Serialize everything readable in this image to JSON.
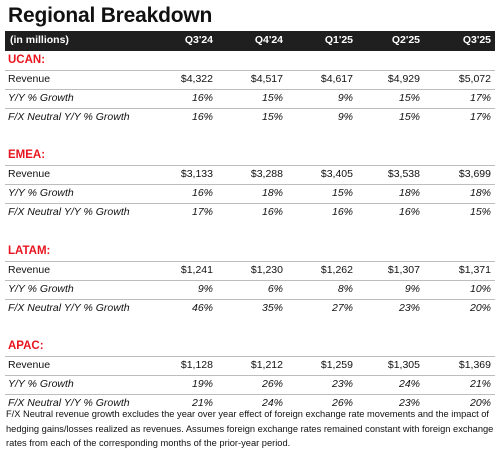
{
  "title": "Regional Breakdown",
  "header": {
    "label": "(in millions)",
    "columns": [
      "Q3'24",
      "Q4'24",
      "Q1'25",
      "Q2'25",
      "Q3'25"
    ]
  },
  "sections": [
    {
      "name": "UCAN:",
      "rows": [
        {
          "label": "Revenue",
          "values": [
            "$4,322",
            "$4,517",
            "$4,617",
            "$4,929",
            "$5,072"
          ]
        },
        {
          "label": "Y/Y % Growth",
          "values": [
            "16%",
            "15%",
            "9%",
            "15%",
            "17%"
          ]
        },
        {
          "label": "F/X Neutral Y/Y % Growth",
          "values": [
            "16%",
            "15%",
            "9%",
            "15%",
            "17%"
          ]
        }
      ]
    },
    {
      "name": "EMEA:",
      "rows": [
        {
          "label": "Revenue",
          "values": [
            "$3,133",
            "$3,288",
            "$3,405",
            "$3,538",
            "$3,699"
          ]
        },
        {
          "label": "Y/Y % Growth",
          "values": [
            "16%",
            "18%",
            "15%",
            "18%",
            "18%"
          ]
        },
        {
          "label": "F/X Neutral Y/Y % Growth",
          "values": [
            "17%",
            "16%",
            "16%",
            "16%",
            "15%"
          ]
        }
      ]
    },
    {
      "name": "LATAM:",
      "rows": [
        {
          "label": "Revenue",
          "values": [
            "$1,241",
            "$1,230",
            "$1,262",
            "$1,307",
            "$1,371"
          ]
        },
        {
          "label": "Y/Y % Growth",
          "values": [
            "9%",
            "6%",
            "8%",
            "9%",
            "10%"
          ]
        },
        {
          "label": "F/X Neutral Y/Y % Growth",
          "values": [
            "46%",
            "35%",
            "27%",
            "23%",
            "20%"
          ]
        }
      ]
    },
    {
      "name": "APAC:",
      "rows": [
        {
          "label": "Revenue",
          "values": [
            "$1,128",
            "$1,212",
            "$1,259",
            "$1,305",
            "$1,369"
          ]
        },
        {
          "label": "Y/Y % Growth",
          "values": [
            "19%",
            "26%",
            "23%",
            "24%",
            "21%"
          ]
        },
        {
          "label": "F/X Neutral Y/Y % Growth",
          "values": [
            "21%",
            "24%",
            "26%",
            "23%",
            "20%"
          ]
        }
      ]
    }
  ],
  "footnote": "F/X Neutral revenue growth excludes the year over year effect of foreign exchange rate movements and the impact of hedging gains/losses realized as revenues. Assumes foreign exchange rates remained constant with foreign exchange rates from each of the corresponding months of the prior-year period.",
  "colors": {
    "section_title": "#e8141f",
    "header_bg": "#1f1f1f",
    "header_text": "#ffffff"
  }
}
